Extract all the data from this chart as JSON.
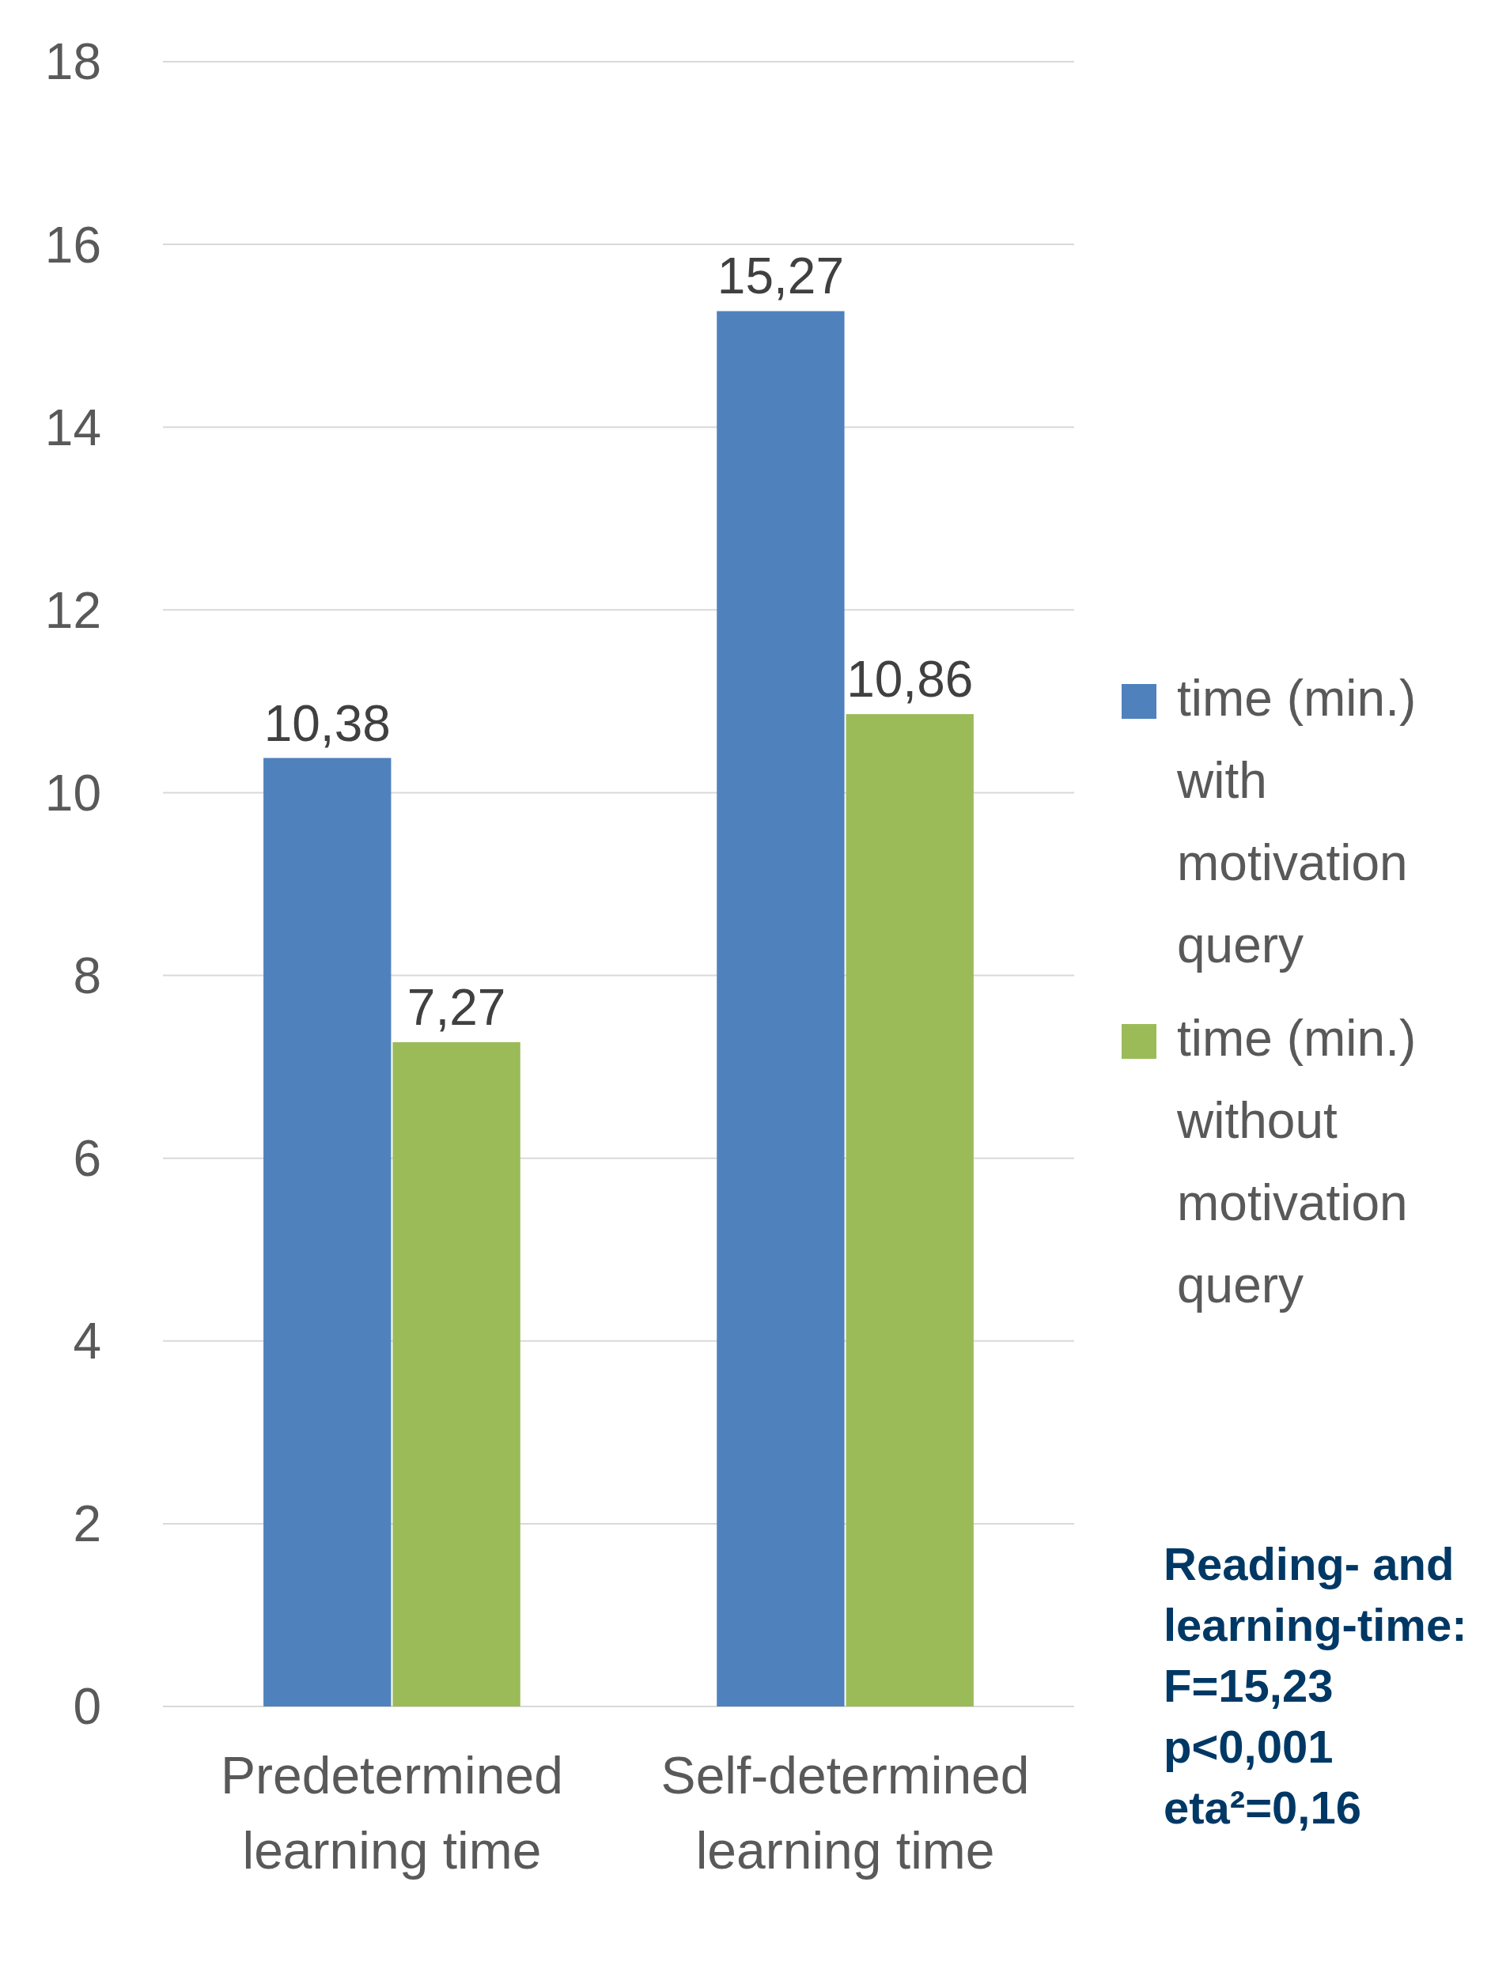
{
  "chart_data": {
    "type": "bar",
    "categories": [
      "Predetermined learning time",
      "Self-determined learning time"
    ],
    "series": [
      {
        "name": "time (min.) with motivation query",
        "color": "#4f81bd",
        "values": [
          10.38,
          15.27
        ],
        "value_labels": [
          "10,38",
          "15,27"
        ]
      },
      {
        "name": "time (min.) without motivation query",
        "color": "#9bbb59",
        "values": [
          7.27,
          10.86
        ],
        "value_labels": [
          "7,27",
          "10,86"
        ]
      }
    ],
    "ylim": [
      0,
      18
    ],
    "yticks": [
      0,
      2,
      4,
      6,
      8,
      10,
      12,
      14,
      16,
      18
    ],
    "grid": "y",
    "legend": "right",
    "annotations": [
      "Reading- and learning-time: F=15,23 p<0,001 eta²=0,16"
    ]
  }
}
